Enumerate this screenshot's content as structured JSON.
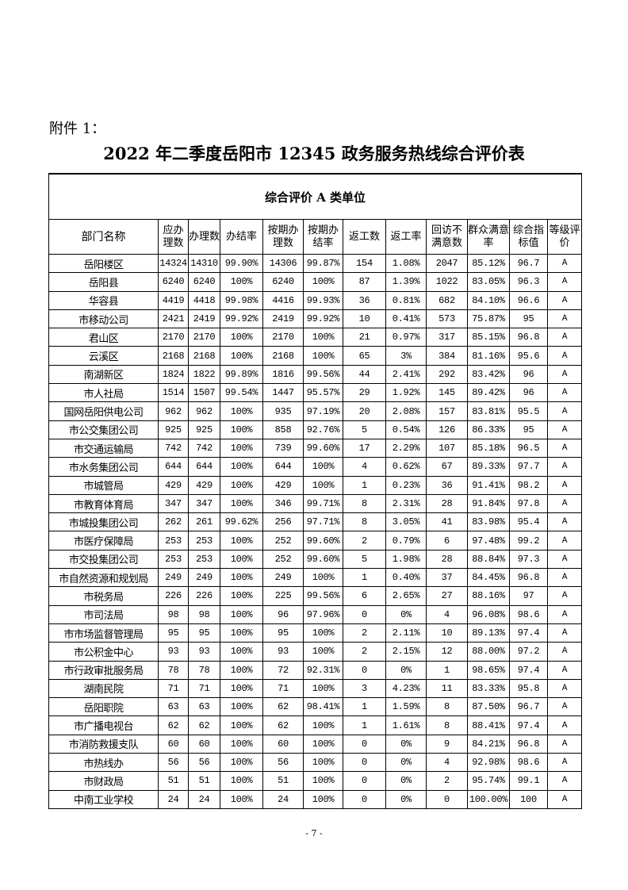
{
  "attachment_label": "附件 1：",
  "title": "2022 年二季度岳阳市 12345 政务服务热线综合评价表",
  "category": "综合评价 A 类单位",
  "headers": [
    "部门名称",
    "应办理数",
    "办理数",
    "办结率",
    "按期办理数",
    "按期办结率",
    "返工数",
    "返工率",
    "回访不满意数",
    "群众满意率",
    "综合指标值",
    "等级评价"
  ],
  "rows": [
    [
      "岳阳楼区",
      "14324",
      "14310",
      "99.90%",
      "14306",
      "99.87%",
      "154",
      "1.08%",
      "2047",
      "85.12%",
      "96.7",
      "A"
    ],
    [
      "岳阳县",
      "6240",
      "6240",
      "100%",
      "6240",
      "100%",
      "87",
      "1.39%",
      "1022",
      "83.05%",
      "96.3",
      "A"
    ],
    [
      "华容县",
      "4419",
      "4418",
      "99.98%",
      "4416",
      "99.93%",
      "36",
      "0.81%",
      "682",
      "84.10%",
      "96.6",
      "A"
    ],
    [
      "市移动公司",
      "2421",
      "2419",
      "99.92%",
      "2419",
      "99.92%",
      "10",
      "0.41%",
      "573",
      "75.87%",
      "95",
      "A"
    ],
    [
      "君山区",
      "2170",
      "2170",
      "100%",
      "2170",
      "100%",
      "21",
      "0.97%",
      "317",
      "85.15%",
      "96.8",
      "A"
    ],
    [
      "云溪区",
      "2168",
      "2168",
      "100%",
      "2168",
      "100%",
      "65",
      "3%",
      "384",
      "81.16%",
      "95.6",
      "A"
    ],
    [
      "南湖新区",
      "1824",
      "1822",
      "99.89%",
      "1816",
      "99.56%",
      "44",
      "2.41%",
      "292",
      "83.42%",
      "96",
      "A"
    ],
    [
      "市人社局",
      "1514",
      "1507",
      "99.54%",
      "1447",
      "95.57%",
      "29",
      "1.92%",
      "145",
      "89.42%",
      "96",
      "A"
    ],
    [
      "国网岳阳供电公司",
      "962",
      "962",
      "100%",
      "935",
      "97.19%",
      "20",
      "2.08%",
      "157",
      "83.81%",
      "95.5",
      "A"
    ],
    [
      "市公交集团公司",
      "925",
      "925",
      "100%",
      "858",
      "92.76%",
      "5",
      "0.54%",
      "126",
      "86.33%",
      "95",
      "A"
    ],
    [
      "市交通运输局",
      "742",
      "742",
      "100%",
      "739",
      "99.60%",
      "17",
      "2.29%",
      "107",
      "85.18%",
      "96.5",
      "A"
    ],
    [
      "市水务集团公司",
      "644",
      "644",
      "100%",
      "644",
      "100%",
      "4",
      "0.62%",
      "67",
      "89.33%",
      "97.7",
      "A"
    ],
    [
      "市城管局",
      "429",
      "429",
      "100%",
      "429",
      "100%",
      "1",
      "0.23%",
      "36",
      "91.41%",
      "98.2",
      "A"
    ],
    [
      "市教育体育局",
      "347",
      "347",
      "100%",
      "346",
      "99.71%",
      "8",
      "2.31%",
      "28",
      "91.84%",
      "97.8",
      "A"
    ],
    [
      "市城投集团公司",
      "262",
      "261",
      "99.62%",
      "256",
      "97.71%",
      "8",
      "3.05%",
      "41",
      "83.98%",
      "95.4",
      "A"
    ],
    [
      "市医疗保障局",
      "253",
      "253",
      "100%",
      "252",
      "99.60%",
      "2",
      "0.79%",
      "6",
      "97.48%",
      "99.2",
      "A"
    ],
    [
      "市交投集团公司",
      "253",
      "253",
      "100%",
      "252",
      "99.60%",
      "5",
      "1.98%",
      "28",
      "88.84%",
      "97.3",
      "A"
    ],
    [
      "市自然资源和规划局",
      "249",
      "249",
      "100%",
      "249",
      "100%",
      "1",
      "0.40%",
      "37",
      "84.45%",
      "96.8",
      "A"
    ],
    [
      "市税务局",
      "226",
      "226",
      "100%",
      "225",
      "99.56%",
      "6",
      "2.65%",
      "27",
      "88.16%",
      "97",
      "A"
    ],
    [
      "市司法局",
      "98",
      "98",
      "100%",
      "96",
      "97.96%",
      "0",
      "0%",
      "4",
      "96.08%",
      "98.6",
      "A"
    ],
    [
      "市市场监督管理局",
      "95",
      "95",
      "100%",
      "95",
      "100%",
      "2",
      "2.11%",
      "10",
      "89.13%",
      "97.4",
      "A"
    ],
    [
      "市公积金中心",
      "93",
      "93",
      "100%",
      "93",
      "100%",
      "2",
      "2.15%",
      "12",
      "88.00%",
      "97.2",
      "A"
    ],
    [
      "市行政审批服务局",
      "78",
      "78",
      "100%",
      "72",
      "92.31%",
      "0",
      "0%",
      "1",
      "98.65%",
      "97.4",
      "A"
    ],
    [
      "湖南民院",
      "71",
      "71",
      "100%",
      "71",
      "100%",
      "3",
      "4.23%",
      "11",
      "83.33%",
      "95.8",
      "A"
    ],
    [
      "岳阳职院",
      "63",
      "63",
      "100%",
      "62",
      "98.41%",
      "1",
      "1.59%",
      "8",
      "87.50%",
      "96.7",
      "A"
    ],
    [
      "市广播电视台",
      "62",
      "62",
      "100%",
      "62",
      "100%",
      "1",
      "1.61%",
      "8",
      "88.41%",
      "97.4",
      "A"
    ],
    [
      "市消防救援支队",
      "60",
      "60",
      "100%",
      "60",
      "100%",
      "0",
      "0%",
      "9",
      "84.21%",
      "96.8",
      "A"
    ],
    [
      "市热线办",
      "56",
      "56",
      "100%",
      "56",
      "100%",
      "0",
      "0%",
      "4",
      "92.98%",
      "98.6",
      "A"
    ],
    [
      "市财政局",
      "51",
      "51",
      "100%",
      "51",
      "100%",
      "0",
      "0%",
      "2",
      "95.74%",
      "99.1",
      "A"
    ],
    [
      "中南工业学校",
      "24",
      "24",
      "100%",
      "24",
      "100%",
      "0",
      "0%",
      "0",
      "100.00%",
      "100",
      "A"
    ]
  ],
  "page_number": "- 7 -"
}
